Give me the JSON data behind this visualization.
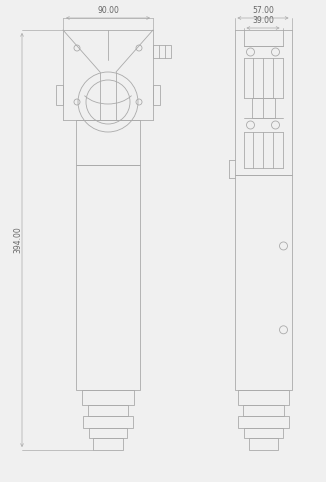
{
  "bg_color": "#f0f0f0",
  "line_color": "#aaaaaa",
  "dim_color": "#aaaaaa",
  "text_color": "#666666",
  "fig_width": 3.26,
  "fig_height": 4.82,
  "dpi": 100,
  "dim_90_label": "90.00",
  "dim_57_label": "57.00",
  "dim_39_label": "39.00",
  "dim_394_label": "394.00"
}
